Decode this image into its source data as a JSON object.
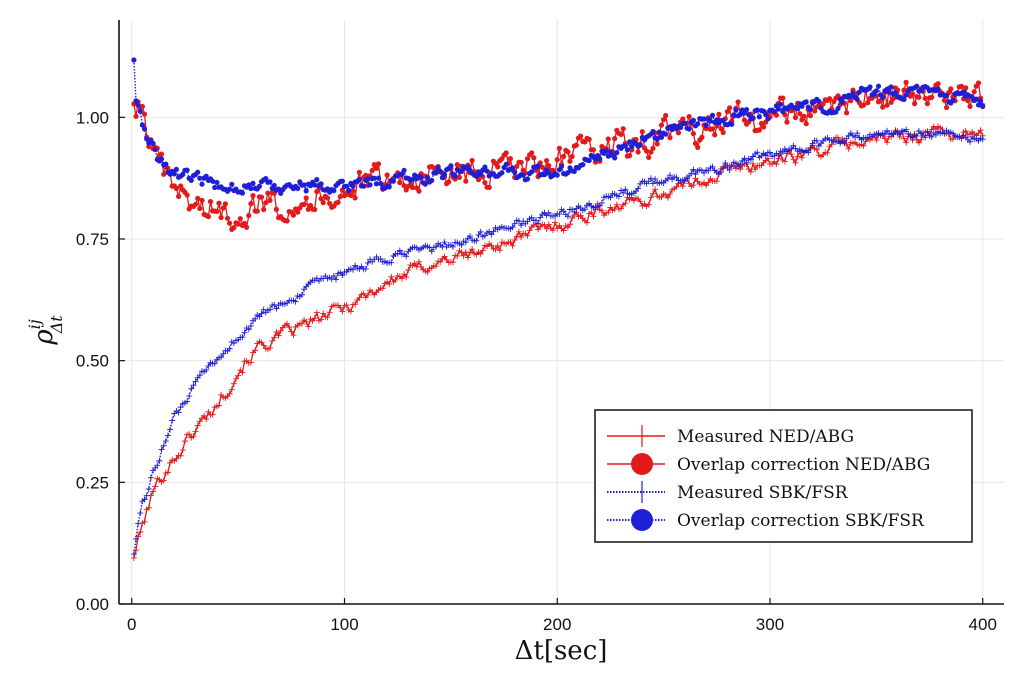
{
  "chart_data": {
    "type": "line",
    "xlabel": "Δt[sec]",
    "ylabel": "ρ",
    "ylabel_sup": "ij",
    "ylabel_sub": "Δt",
    "xlim": [
      -6,
      410
    ],
    "ylim": [
      0,
      1.2
    ],
    "xticks": [
      0,
      100,
      200,
      300,
      400
    ],
    "xtick_labels": [
      "0",
      "100",
      "200",
      "300",
      "400"
    ],
    "yticks": [
      0,
      0.25,
      0.5,
      0.75,
      1.0
    ],
    "ytick_labels": [
      "0.00",
      "0.25",
      "0.50",
      "0.75",
      "1.00"
    ],
    "grid": true,
    "legend_position": "bottom-right",
    "series": [
      {
        "name": "Measured NED/ABG",
        "color": "#e31a1c",
        "line": "solid",
        "marker": "cross",
        "anchors_x": [
          1,
          3,
          5,
          10,
          15,
          20,
          30,
          40,
          50,
          60,
          80,
          100,
          120,
          140,
          160,
          180,
          200,
          220,
          240,
          260,
          280,
          300,
          320,
          340,
          360,
          380,
          400
        ],
        "anchors_y": [
          0.1,
          0.13,
          0.16,
          0.23,
          0.27,
          0.3,
          0.36,
          0.41,
          0.48,
          0.53,
          0.57,
          0.61,
          0.66,
          0.7,
          0.72,
          0.75,
          0.78,
          0.81,
          0.83,
          0.86,
          0.89,
          0.91,
          0.93,
          0.95,
          0.96,
          0.97,
          0.96
        ],
        "noise": 0.012
      },
      {
        "name": "Overlap correction NED/ABG",
        "color": "#e31a1c",
        "line": "solid",
        "marker": "circle",
        "anchors_x": [
          1,
          3,
          5,
          8,
          12,
          18,
          30,
          45,
          60,
          80,
          100,
          120,
          140,
          160,
          180,
          200,
          220,
          240,
          260,
          280,
          300,
          320,
          340,
          360,
          380,
          400
        ],
        "anchors_y": [
          1.02,
          1.02,
          1.0,
          0.96,
          0.9,
          0.86,
          0.82,
          0.8,
          0.82,
          0.83,
          0.85,
          0.87,
          0.88,
          0.89,
          0.89,
          0.91,
          0.93,
          0.95,
          0.97,
          0.99,
          1.0,
          1.02,
          1.04,
          1.05,
          1.04,
          1.03
        ],
        "noise": 0.025
      },
      {
        "name": "Measured SBK/FSR",
        "color": "#1f1fd6",
        "line": "dotted",
        "marker": "cross",
        "anchors_x": [
          1,
          3,
          5,
          10,
          15,
          20,
          30,
          40,
          50,
          60,
          80,
          100,
          120,
          140,
          160,
          180,
          200,
          220,
          240,
          260,
          280,
          300,
          320,
          340,
          360,
          380,
          400
        ],
        "anchors_y": [
          0.11,
          0.16,
          0.2,
          0.27,
          0.33,
          0.38,
          0.45,
          0.5,
          0.55,
          0.59,
          0.64,
          0.68,
          0.71,
          0.73,
          0.75,
          0.78,
          0.8,
          0.83,
          0.86,
          0.88,
          0.9,
          0.92,
          0.94,
          0.96,
          0.97,
          0.97,
          0.96
        ],
        "noise": 0.008
      },
      {
        "name": "Overlap correction SBK/FSR",
        "color": "#1f1fd6",
        "line": "dotted",
        "marker": "circle",
        "anchors_x": [
          1,
          2,
          4,
          7,
          12,
          18,
          30,
          45,
          60,
          80,
          100,
          120,
          140,
          160,
          180,
          200,
          220,
          240,
          260,
          280,
          300,
          320,
          340,
          350,
          360,
          380,
          400
        ],
        "anchors_y": [
          1.12,
          1.04,
          1.0,
          0.96,
          0.92,
          0.89,
          0.87,
          0.86,
          0.86,
          0.86,
          0.86,
          0.87,
          0.88,
          0.89,
          0.89,
          0.88,
          0.92,
          0.96,
          0.98,
          1.0,
          1.01,
          1.02,
          1.04,
          1.05,
          1.05,
          1.05,
          1.02
        ],
        "noise": 0.012
      }
    ]
  }
}
